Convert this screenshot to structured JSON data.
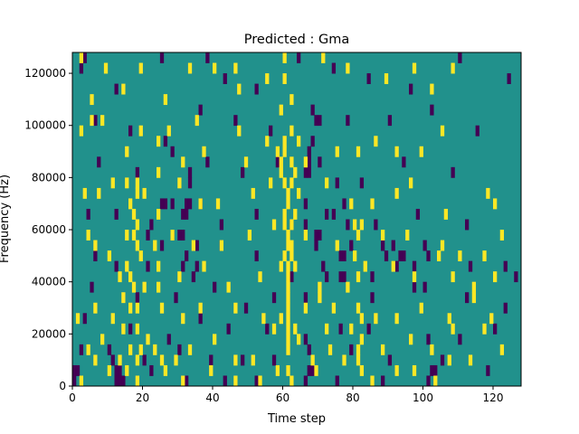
{
  "chart_data": {
    "type": "heatmap",
    "title": "Predicted : Gma",
    "xlabel": "Time step",
    "ylabel": "Frequency (Hz)",
    "xlim": [
      0,
      128
    ],
    "ylim": [
      0,
      128000
    ],
    "x_ticks": [
      "0",
      "20",
      "40",
      "60",
      "80",
      "100",
      "120"
    ],
    "y_ticks": [
      "0",
      "20000",
      "40000",
      "60000",
      "80000",
      "100000",
      "120000"
    ],
    "colormap": "viridis",
    "colors": {
      "low": "#440154",
      "mid": "#21918c",
      "high": "#fde725"
    },
    "grid": false,
    "legend": "none",
    "n_cols": 128,
    "n_rows": 32,
    "cell_width": 1,
    "cell_height": 4000,
    "default_level": 0,
    "high_cells": [
      [
        2,
        31
      ],
      [
        5,
        27
      ],
      [
        9,
        30
      ],
      [
        14,
        28
      ],
      [
        19,
        30
      ],
      [
        26,
        27
      ],
      [
        33,
        30
      ],
      [
        40,
        30
      ],
      [
        46,
        30
      ],
      [
        47,
        28
      ],
      [
        55,
        29
      ],
      [
        60,
        31
      ],
      [
        71,
        31
      ],
      [
        78,
        30
      ],
      [
        89,
        29
      ],
      [
        97,
        30
      ],
      [
        102,
        28
      ],
      [
        108,
        30
      ],
      [
        2,
        24
      ],
      [
        5,
        25
      ],
      [
        8,
        25
      ],
      [
        15,
        22
      ],
      [
        19,
        24
      ],
      [
        27,
        24
      ],
      [
        31,
        21
      ],
      [
        35,
        25
      ],
      [
        37,
        22
      ],
      [
        47,
        24
      ],
      [
        49,
        21
      ],
      [
        55,
        23
      ],
      [
        58,
        22
      ],
      [
        62,
        24
      ],
      [
        64,
        23
      ],
      [
        66,
        21
      ],
      [
        75,
        22
      ],
      [
        81,
        22
      ],
      [
        86,
        23
      ],
      [
        92,
        22
      ],
      [
        99,
        22
      ],
      [
        105,
        24
      ],
      [
        3,
        18
      ],
      [
        7,
        18
      ],
      [
        11,
        19
      ],
      [
        16,
        17
      ],
      [
        20,
        18
      ],
      [
        24,
        16
      ],
      [
        30,
        19
      ],
      [
        36,
        17
      ],
      [
        41,
        17
      ],
      [
        51,
        18
      ],
      [
        56,
        19
      ],
      [
        64,
        18
      ],
      [
        72,
        19
      ],
      [
        79,
        17
      ],
      [
        85,
        17
      ],
      [
        92,
        18
      ],
      [
        96,
        19
      ],
      [
        106,
        16
      ],
      [
        118,
        18
      ],
      [
        120,
        17
      ],
      [
        4,
        14
      ],
      [
        6,
        13
      ],
      [
        10,
        12
      ],
      [
        15,
        14
      ],
      [
        17,
        14
      ],
      [
        23,
        13
      ],
      [
        28,
        14
      ],
      [
        34,
        13
      ],
      [
        42,
        13
      ],
      [
        50,
        14
      ],
      [
        57,
        15
      ],
      [
        62,
        12
      ],
      [
        66,
        14
      ],
      [
        75,
        13
      ],
      [
        80,
        15
      ],
      [
        88,
        14
      ],
      [
        95,
        14
      ],
      [
        105,
        13
      ],
      [
        110,
        12
      ],
      [
        117,
        12
      ],
      [
        122,
        14
      ],
      [
        13,
        10
      ],
      [
        16,
        10
      ],
      [
        20,
        9
      ],
      [
        24,
        11
      ],
      [
        30,
        10
      ],
      [
        37,
        11
      ],
      [
        44,
        9
      ],
      [
        53,
        10
      ],
      [
        59,
        11
      ],
      [
        63,
        11
      ],
      [
        70,
        9
      ],
      [
        78,
        9
      ],
      [
        83,
        11
      ],
      [
        91,
        11
      ],
      [
        97,
        10
      ],
      [
        104,
        12
      ],
      [
        108,
        10
      ],
      [
        114,
        9
      ],
      [
        120,
        10
      ],
      [
        1,
        6
      ],
      [
        6,
        7
      ],
      [
        11,
        6
      ],
      [
        16,
        7
      ],
      [
        24,
        9
      ],
      [
        31,
        6
      ],
      [
        36,
        7
      ],
      [
        46,
        7
      ],
      [
        54,
        6
      ],
      [
        59,
        6
      ],
      [
        66,
        7
      ],
      [
        70,
        8
      ],
      [
        74,
        7
      ],
      [
        79,
        5
      ],
      [
        86,
        6
      ],
      [
        92,
        6
      ],
      [
        99,
        7
      ],
      [
        107,
        6
      ],
      [
        114,
        8
      ],
      [
        119,
        6
      ],
      [
        4,
        3
      ],
      [
        8,
        4
      ],
      [
        13,
        2
      ],
      [
        16,
        3
      ],
      [
        21,
        4
      ],
      [
        29,
        2
      ],
      [
        33,
        3
      ],
      [
        40,
        4
      ],
      [
        46,
        2
      ],
      [
        51,
        2
      ],
      [
        57,
        5
      ],
      [
        64,
        4
      ],
      [
        68,
        2
      ],
      [
        72,
        5
      ],
      [
        77,
        2
      ],
      [
        82,
        4
      ],
      [
        88,
        3
      ],
      [
        96,
        4
      ],
      [
        102,
        3
      ],
      [
        108,
        5
      ],
      [
        117,
        5
      ],
      [
        122,
        3
      ],
      [
        2,
        0
      ],
      [
        6,
        2
      ],
      [
        10,
        1
      ],
      [
        15,
        1
      ],
      [
        18,
        0
      ],
      [
        26,
        1
      ],
      [
        31,
        0
      ],
      [
        39,
        1
      ],
      [
        46,
        0
      ],
      [
        53,
        0
      ],
      [
        58,
        1
      ],
      [
        62,
        0
      ],
      [
        69,
        1
      ],
      [
        73,
        3
      ],
      [
        82,
        1
      ],
      [
        85,
        0
      ],
      [
        92,
        1
      ],
      [
        97,
        1
      ],
      [
        103,
        0
      ],
      [
        107,
        2
      ],
      [
        113,
        2
      ],
      [
        18,
        5
      ],
      [
        18,
        7
      ],
      [
        18,
        13
      ],
      [
        18,
        15
      ],
      [
        18,
        18
      ],
      [
        18,
        19
      ],
      [
        17,
        16
      ],
      [
        17,
        9
      ],
      [
        15,
        11
      ],
      [
        14,
        5
      ],
      [
        14,
        8
      ],
      [
        19,
        3
      ],
      [
        19,
        12
      ],
      [
        23,
        3
      ],
      [
        24,
        20
      ],
      [
        24,
        23
      ],
      [
        25,
        2
      ],
      [
        25,
        7
      ],
      [
        18,
        2
      ],
      [
        15,
        19
      ],
      [
        61,
        1
      ],
      [
        61,
        3
      ],
      [
        61,
        4
      ],
      [
        61,
        5
      ],
      [
        61,
        6
      ],
      [
        61,
        7
      ],
      [
        61,
        8
      ],
      [
        61,
        9
      ],
      [
        61,
        10
      ],
      [
        61,
        11
      ],
      [
        61,
        13
      ],
      [
        61,
        14
      ],
      [
        61,
        17
      ],
      [
        61,
        18
      ],
      [
        60,
        12
      ],
      [
        60,
        15
      ],
      [
        60,
        16
      ],
      [
        60,
        19
      ],
      [
        60,
        22
      ],
      [
        60,
        23
      ],
      [
        59,
        20
      ],
      [
        59,
        21
      ],
      [
        59,
        26
      ],
      [
        62,
        13
      ],
      [
        62,
        15
      ],
      [
        62,
        19
      ],
      [
        62,
        21
      ],
      [
        62,
        27
      ],
      [
        63,
        5
      ],
      [
        63,
        16
      ],
      [
        63,
        20
      ],
      [
        60,
        29
      ],
      [
        81,
        2
      ],
      [
        81,
        3
      ],
      [
        81,
        7
      ],
      [
        82,
        6
      ],
      [
        81,
        10
      ],
      [
        80,
        12
      ],
      [
        81,
        14
      ],
      [
        82,
        15
      ]
    ],
    "low_cells": [
      [
        2,
        30
      ],
      [
        3,
        31
      ],
      [
        12,
        28
      ],
      [
        25,
        31
      ],
      [
        38,
        31
      ],
      [
        43,
        29
      ],
      [
        52,
        28
      ],
      [
        64,
        31
      ],
      [
        74,
        30
      ],
      [
        84,
        29
      ],
      [
        96,
        28
      ],
      [
        110,
        31
      ],
      [
        124,
        29
      ],
      [
        6,
        25
      ],
      [
        16,
        24
      ],
      [
        26,
        23
      ],
      [
        36,
        26
      ],
      [
        46,
        25
      ],
      [
        56,
        24
      ],
      [
        68,
        23
      ],
      [
        78,
        25
      ],
      [
        90,
        25
      ],
      [
        102,
        26
      ],
      [
        115,
        24
      ],
      [
        7,
        21
      ],
      [
        18,
        20
      ],
      [
        28,
        22
      ],
      [
        38,
        21
      ],
      [
        48,
        20
      ],
      [
        58,
        21
      ],
      [
        70,
        21
      ],
      [
        82,
        19
      ],
      [
        94,
        21
      ],
      [
        108,
        20
      ],
      [
        4,
        16
      ],
      [
        12,
        16
      ],
      [
        22,
        15
      ],
      [
        32,
        16
      ],
      [
        42,
        15
      ],
      [
        52,
        16
      ],
      [
        62,
        15
      ],
      [
        74,
        16
      ],
      [
        86,
        15
      ],
      [
        98,
        16
      ],
      [
        112,
        15
      ],
      [
        6,
        12
      ],
      [
        12,
        11
      ],
      [
        25,
        13
      ],
      [
        31,
        11
      ],
      [
        42,
        13
      ],
      [
        52,
        12
      ],
      [
        62,
        10
      ],
      [
        71,
        11
      ],
      [
        85,
        10
      ],
      [
        94,
        12
      ],
      [
        113,
        11
      ],
      [
        123,
        11
      ],
      [
        5,
        9
      ],
      [
        18,
        8
      ],
      [
        29,
        8
      ],
      [
        40,
        9
      ],
      [
        49,
        7
      ],
      [
        57,
        8
      ],
      [
        66,
        8
      ],
      [
        72,
        10
      ],
      [
        85,
        8
      ],
      [
        100,
        9
      ],
      [
        112,
        8
      ],
      [
        123,
        7
      ],
      [
        126,
        10
      ],
      [
        3,
        6
      ],
      [
        16,
        5
      ],
      [
        27,
        4
      ],
      [
        36,
        6
      ],
      [
        44,
        5
      ],
      [
        55,
        5
      ],
      [
        66,
        4
      ],
      [
        76,
        5
      ],
      [
        84,
        5
      ],
      [
        101,
        4
      ],
      [
        110,
        4
      ],
      [
        120,
        5
      ],
      [
        2,
        3
      ],
      [
        10,
        3
      ],
      [
        20,
        2
      ],
      [
        30,
        3
      ],
      [
        39,
        2
      ],
      [
        48,
        2
      ],
      [
        57,
        2
      ],
      [
        67,
        3
      ],
      [
        79,
        3
      ],
      [
        90,
        2
      ],
      [
        105,
        2
      ],
      [
        118,
        1
      ],
      [
        0,
        0
      ],
      [
        0,
        1
      ],
      [
        1,
        1
      ],
      [
        12,
        0
      ],
      [
        12,
        1
      ],
      [
        13,
        0
      ],
      [
        13,
        1
      ],
      [
        14,
        0
      ],
      [
        11,
        2
      ],
      [
        22,
        1
      ],
      [
        32,
        0
      ],
      [
        43,
        0
      ],
      [
        52,
        0
      ],
      [
        66,
        0
      ],
      [
        67,
        1
      ],
      [
        68,
        1
      ],
      [
        75,
        0
      ],
      [
        88,
        0
      ],
      [
        101,
        0
      ],
      [
        102,
        1
      ],
      [
        103,
        1
      ],
      [
        28,
        14
      ],
      [
        30,
        14
      ],
      [
        31,
        14
      ],
      [
        32,
        12
      ],
      [
        34,
        10
      ],
      [
        35,
        11
      ],
      [
        36,
        17
      ],
      [
        32,
        17
      ],
      [
        33,
        17
      ],
      [
        21,
        14
      ],
      [
        21,
        11
      ],
      [
        35,
        13
      ],
      [
        69,
        13
      ],
      [
        69,
        14
      ],
      [
        70,
        14
      ],
      [
        66,
        20
      ],
      [
        67,
        20
      ],
      [
        67,
        21
      ],
      [
        67,
        22
      ],
      [
        66,
        15
      ],
      [
        66,
        17
      ],
      [
        76,
        12
      ],
      [
        77,
        12
      ],
      [
        76,
        10
      ],
      [
        77,
        10
      ],
      [
        78,
        15
      ],
      [
        79,
        13
      ],
      [
        77,
        17
      ],
      [
        88,
        13
      ],
      [
        89,
        12
      ],
      [
        91,
        13
      ],
      [
        92,
        11
      ],
      [
        93,
        12
      ],
      [
        100,
        13
      ],
      [
        101,
        12
      ],
      [
        97,
        11
      ],
      [
        97,
        9
      ],
      [
        25,
        17
      ],
      [
        26,
        17
      ],
      [
        28,
        17
      ],
      [
        31,
        16
      ],
      [
        33,
        19
      ],
      [
        33,
        20
      ],
      [
        72,
        16
      ],
      [
        75,
        19
      ],
      [
        68,
        26
      ],
      [
        69,
        25
      ],
      [
        70,
        25
      ]
    ]
  }
}
